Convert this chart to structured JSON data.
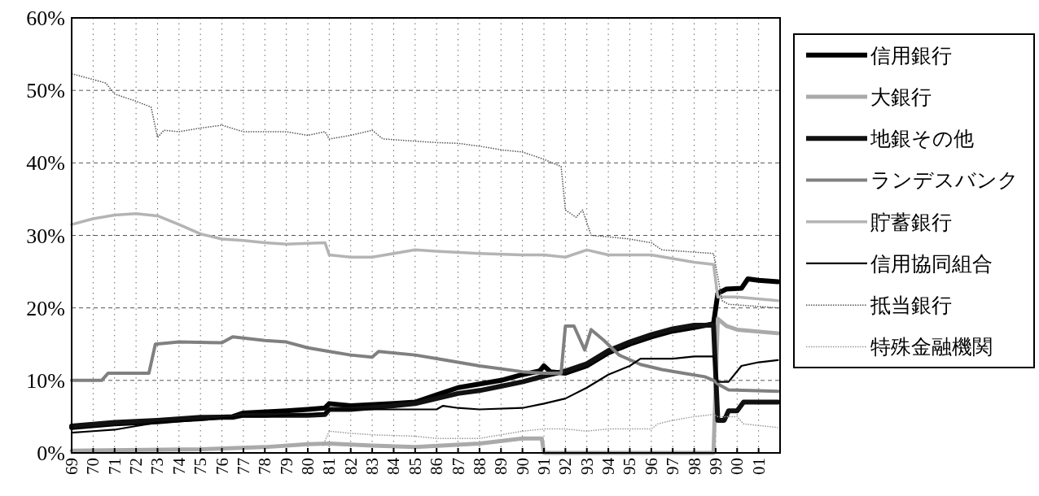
{
  "chart_data": {
    "type": "line",
    "xlim": [
      1969,
      2002
    ],
    "ylim": [
      0,
      60
    ],
    "xticks": [
      {
        "value": 1969,
        "label": "69"
      },
      {
        "value": 1970,
        "label": "70"
      },
      {
        "value": 1971,
        "label": "71"
      },
      {
        "value": 1972,
        "label": "72"
      },
      {
        "value": 1973,
        "label": "73"
      },
      {
        "value": 1974,
        "label": "74"
      },
      {
        "value": 1975,
        "label": "75"
      },
      {
        "value": 1976,
        "label": "76"
      },
      {
        "value": 1977,
        "label": "77"
      },
      {
        "value": 1978,
        "label": "78"
      },
      {
        "value": 1979,
        "label": "79"
      },
      {
        "value": 1980,
        "label": "80"
      },
      {
        "value": 1981,
        "label": "81"
      },
      {
        "value": 1982,
        "label": "82"
      },
      {
        "value": 1983,
        "label": "83"
      },
      {
        "value": 1984,
        "label": "84"
      },
      {
        "value": 1985,
        "label": "85"
      },
      {
        "value": 1986,
        "label": "86"
      },
      {
        "value": 1987,
        "label": "87"
      },
      {
        "value": 1988,
        "label": "88"
      },
      {
        "value": 1989,
        "label": "89"
      },
      {
        "value": 1990,
        "label": "90"
      },
      {
        "value": 1991,
        "label": "91"
      },
      {
        "value": 1992,
        "label": "92"
      },
      {
        "value": 1993,
        "label": "93"
      },
      {
        "value": 1994,
        "label": "94"
      },
      {
        "value": 1995,
        "label": "95"
      },
      {
        "value": 1996,
        "label": "96"
      },
      {
        "value": 1997,
        "label": "97"
      },
      {
        "value": 1998,
        "label": "98"
      },
      {
        "value": 1999,
        "label": "99"
      },
      {
        "value": 2000,
        "label": "00"
      },
      {
        "value": 2001,
        "label": "01"
      }
    ],
    "yticks": [
      {
        "value": 0,
        "label": "0%"
      },
      {
        "value": 10,
        "label": "10%"
      },
      {
        "value": 20,
        "label": "20%"
      },
      {
        "value": 30,
        "label": "30%"
      },
      {
        "value": 40,
        "label": "40%"
      },
      {
        "value": 50,
        "label": "50%"
      },
      {
        "value": 60,
        "label": "60%"
      }
    ],
    "grid": true,
    "legend": "right",
    "series": [
      {
        "name": "信用銀行",
        "color": "#000000",
        "line_style": "solid",
        "x": [
          1969,
          1971,
          1973,
          1975,
          1976.5,
          1977,
          1979,
          1980,
          1980.8,
          1981,
          1982,
          1984,
          1985,
          1986,
          1987,
          1988,
          1989,
          1990,
          1990.8,
          1991,
          1991.3,
          1992,
          1993,
          1994,
          1995,
          1996,
          1997,
          1998,
          1998.9,
          1999.1,
          1999.5,
          2000.2,
          2000.5,
          2001,
          2001.9
        ],
        "values": [
          3.5,
          4.0,
          4.3,
          4.8,
          5.0,
          5.5,
          5.8,
          6.0,
          6.2,
          6.8,
          6.5,
          6.8,
          7.0,
          8.0,
          9.0,
          9.5,
          10.0,
          10.8,
          11.3,
          12.0,
          11.2,
          11.0,
          12.0,
          13.8,
          15.0,
          16.0,
          16.8,
          17.3,
          17.8,
          22.0,
          22.6,
          22.7,
          24.0,
          23.8,
          23.6
        ]
      },
      {
        "name": "大銀行",
        "color": "#aaaaaa",
        "line_style": "solid",
        "x": [
          1969,
          1975,
          1978,
          1980,
          1981,
          1983,
          1985,
          1988,
          1990,
          1990.9,
          1991,
          1998.9,
          1999.1,
          1999.5,
          2000,
          2001.9
        ],
        "values": [
          0.3,
          0.5,
          0.8,
          1.2,
          1.3,
          1.0,
          0.8,
          1.3,
          2.0,
          2.0,
          0,
          0,
          18.5,
          17.5,
          17.0,
          16.5
        ]
      },
      {
        "name": "地銀その他",
        "color": "#111111",
        "line_style": "solid",
        "x": [
          1969,
          1971,
          1973,
          1975,
          1976.5,
          1977,
          1980,
          1980.8,
          1981,
          1982,
          1984,
          1985,
          1986,
          1987,
          1988,
          1989,
          1990,
          1991,
          1992,
          1993,
          1994,
          1995,
          1996,
          1997,
          1998,
          1998.9,
          1999.1,
          1999.4,
          1999.6,
          2000,
          2000.3,
          2001.9
        ],
        "values": [
          3.7,
          4.2,
          4.5,
          4.9,
          4.9,
          5.2,
          5.2,
          5.3,
          6.0,
          6.0,
          6.5,
          6.8,
          7.5,
          8.2,
          8.6,
          9.2,
          9.8,
          10.6,
          11.3,
          12.3,
          14.1,
          15.3,
          16.3,
          17.1,
          17.6,
          17.6,
          4.5,
          4.5,
          5.8,
          5.8,
          7.0,
          7.0
        ]
      },
      {
        "name": "ランデスバンク",
        "color": "#808080",
        "line_style": "solid",
        "x": [
          1969,
          1970.4,
          1970.7,
          1972.6,
          1972.9,
          1974,
          1976,
          1976.5,
          1978,
          1979,
          1980,
          1981,
          1982,
          1983,
          1983.3,
          1985,
          1986,
          1988,
          1990,
          1991,
          1991.8,
          1992,
          1992.4,
          1992.9,
          1993.2,
          1993.8,
          1994.5,
          1995.5,
          1996.5,
          1997.5,
          1998.5,
          1998.9,
          1999.1,
          1999.6,
          2001.9
        ],
        "values": [
          10,
          10,
          11,
          11,
          15,
          15.3,
          15.2,
          16,
          15.5,
          15.3,
          14.5,
          14,
          13.5,
          13.2,
          14,
          13.5,
          13,
          12,
          11.2,
          11,
          11,
          17.5,
          17.5,
          14.2,
          17,
          15.5,
          13.5,
          12.2,
          11.5,
          11.0,
          10.5,
          10.0,
          9.5,
          8.7,
          8.5
        ]
      },
      {
        "name": "貯蓄銀行",
        "color": "#b4b4b4",
        "line_style": "solid",
        "x": [
          1969,
          1970,
          1971,
          1972,
          1973,
          1974,
          1975,
          1976,
          1977,
          1978,
          1979,
          1980.8,
          1981,
          1982,
          1983,
          1984,
          1985,
          1986,
          1988,
          1990,
          1991,
          1992,
          1993,
          1994,
          1996,
          1997,
          1998,
          1998.9,
          1999.1,
          2000,
          2001.9
        ],
        "values": [
          31.5,
          32.3,
          32.8,
          33.0,
          32.7,
          31.5,
          30.2,
          29.5,
          29.3,
          29.0,
          28.8,
          29.0,
          27.3,
          27.0,
          27.0,
          27.5,
          28.0,
          27.8,
          27.5,
          27.3,
          27.3,
          27.0,
          28.0,
          27.3,
          27.3,
          26.8,
          26.3,
          26.0,
          21.5,
          21.5,
          21.0
        ]
      },
      {
        "name": "信用協同組合",
        "color": "#000000",
        "line_style": "solid",
        "x": [
          1969,
          1970,
          1971,
          1972,
          1973,
          1975,
          1977,
          1978,
          1980,
          1980.8,
          1981,
          1983,
          1986,
          1986.3,
          1987,
          1988,
          1990,
          1991,
          1992,
          1993,
          1994,
          1995,
          1995.5,
          1997,
          1998,
          1998.9,
          1999.1,
          1999.6,
          2000.2,
          2001,
          2001.9
        ],
        "values": [
          2.8,
          3.0,
          3.2,
          3.7,
          4.2,
          4.5,
          5.0,
          5.0,
          5.3,
          5.5,
          6.0,
          6.0,
          6.0,
          6.5,
          6.2,
          6.0,
          6.2,
          6.8,
          7.5,
          9.0,
          10.8,
          12.0,
          13.0,
          13.0,
          13.3,
          13.3,
          9.8,
          9.8,
          12.0,
          12.5,
          12.8
        ]
      },
      {
        "name": "抵当銀行",
        "color": "#555555",
        "line_style": "dotted",
        "x": [
          1969,
          1970,
          1970.6,
          1971,
          1972,
          1972.7,
          1973,
          1973.3,
          1974,
          1975,
          1976,
          1977,
          1979,
          1980,
          1980.8,
          1981,
          1982,
          1983,
          1983.5,
          1985,
          1986,
          1987,
          1988,
          1989,
          1990,
          1991,
          1991.8,
          1992,
          1992.5,
          1992.8,
          1993.2,
          1994,
          1995,
          1996,
          1996.5,
          1997.5,
          1998.9,
          1999.3,
          1999.6,
          2001.9
        ],
        "values": [
          52.3,
          51.5,
          51,
          49.5,
          48.5,
          47.7,
          43.5,
          44.5,
          44.3,
          44.8,
          45.2,
          44.3,
          44.3,
          43.8,
          44.3,
          43.3,
          43.8,
          44.5,
          43.3,
          43.0,
          42.8,
          42.7,
          42.3,
          41.8,
          41.5,
          40.5,
          39.5,
          33.5,
          32.5,
          33.5,
          30.0,
          29.8,
          29.5,
          29.0,
          28.0,
          27.8,
          27.5,
          21.0,
          20.5,
          20.0
        ]
      },
      {
        "name": "特殊金融機関",
        "color": "#999999",
        "line_style": "dotted",
        "x": [
          1980.7,
          1981,
          1982,
          1983,
          1985,
          1986,
          1988,
          1989,
          1990,
          1991,
          1992,
          1993,
          1994,
          1996,
          1996.3,
          1997,
          1998,
          1998.9,
          1999.1,
          2000,
          2000.3,
          2001.9
        ],
        "values": [
          1.0,
          3.0,
          2.7,
          2.5,
          2.3,
          2.0,
          2.0,
          2.5,
          3.0,
          3.3,
          3.3,
          3.0,
          3.3,
          3.3,
          4.0,
          4.5,
          5.0,
          5.3,
          5.0,
          5.0,
          4.0,
          3.5
        ]
      }
    ]
  }
}
